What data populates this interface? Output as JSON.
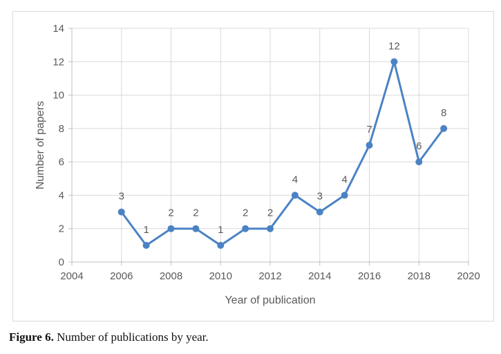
{
  "figure_caption": {
    "label": "Figure 6.",
    "text": " Number of publications by year."
  },
  "chart_data": {
    "type": "line",
    "x": [
      2006,
      2007,
      2008,
      2009,
      2010,
      2011,
      2012,
      2013,
      2014,
      2015,
      2016,
      2017,
      2018,
      2019
    ],
    "values": [
      3,
      1,
      2,
      2,
      1,
      2,
      2,
      4,
      3,
      4,
      7,
      12,
      6,
      8
    ],
    "title": "",
    "xlabel": "Year of publication",
    "ylabel": "Number of papers",
    "xlim": [
      2004,
      2020
    ],
    "ylim": [
      0,
      14
    ],
    "x_ticks": [
      2004,
      2006,
      2008,
      2010,
      2012,
      2014,
      2016,
      2018,
      2020
    ],
    "y_ticks": [
      0,
      2,
      4,
      6,
      8,
      10,
      12,
      14
    ],
    "grid": true,
    "data_labels": true,
    "legend": "none",
    "colors": {
      "line": "#4b82c4",
      "text": "#595959",
      "grid": "#d9d9d9",
      "axis": "#bfbfbf",
      "border": "#d9d9d9"
    }
  }
}
